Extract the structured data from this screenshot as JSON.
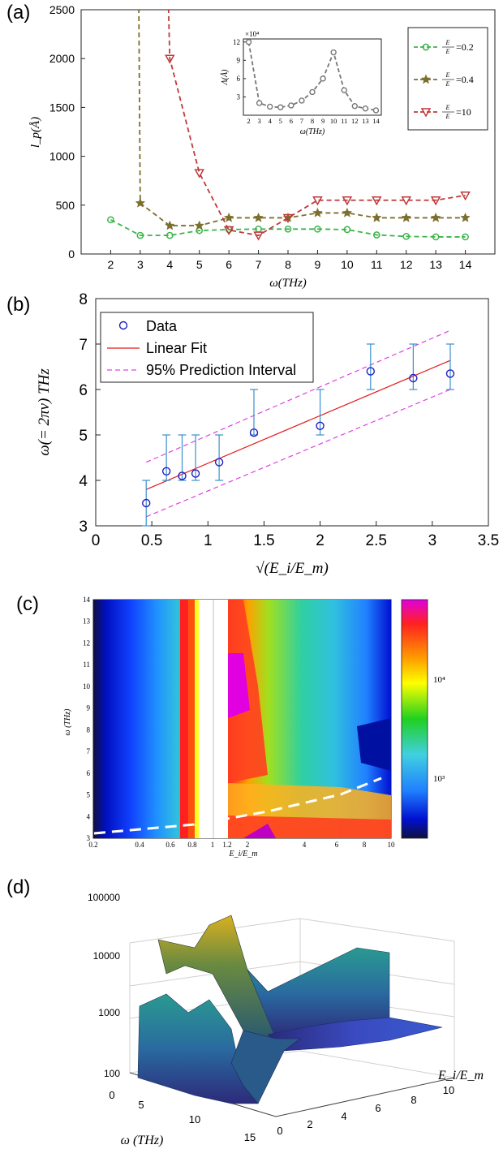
{
  "panels": {
    "a": "(a)",
    "b": "(b)",
    "c": "(c)",
    "d": "(d)"
  },
  "chart_data": [
    {
      "id": "a",
      "type": "line",
      "ylabel": "l_p(Å)",
      "xlabel": "ω(THz)",
      "xlim": [
        1,
        15
      ],
      "ylim": [
        0,
        2500
      ],
      "xticks": [
        2,
        3,
        4,
        5,
        6,
        7,
        8,
        9,
        10,
        11,
        12,
        13,
        14
      ],
      "yticks": [
        0,
        500,
        1000,
        1500,
        2000,
        2500
      ],
      "legend_position": "top-right",
      "series": [
        {
          "name": "E_i/E_m = 0.2",
          "marker": "circle",
          "color": "#3cb44b",
          "x": [
            2,
            3,
            4,
            5,
            6,
            7,
            8,
            9,
            10,
            11,
            12,
            13,
            14
          ],
          "y": [
            350,
            190,
            190,
            240,
            250,
            255,
            255,
            255,
            250,
            195,
            180,
            175,
            175
          ]
        },
        {
          "name": "E_i/E_m = 0.4",
          "marker": "star",
          "color": "#7b6f2e",
          "x": [
            3,
            4,
            5,
            6,
            7,
            8,
            9,
            10,
            11,
            12,
            13,
            14
          ],
          "y": [
            520,
            290,
            290,
            370,
            370,
            370,
            420,
            420,
            370,
            370,
            370,
            370
          ]
        },
        {
          "name": "E_i/E_m = 10",
          "marker": "triangle-down",
          "color": "#c0393b",
          "x": [
            4,
            5,
            6,
            7,
            8,
            9,
            10,
            11,
            12,
            13,
            14
          ],
          "y": [
            2000,
            830,
            245,
            190,
            370,
            550,
            550,
            550,
            550,
            550,
            600
          ]
        }
      ],
      "inset": {
        "ylabel": "Λ(Å)",
        "xlabel": "ω(THz)",
        "exponent": "×10⁴",
        "yticks": [
          3,
          6,
          9,
          12
        ],
        "xticks": [
          2,
          3,
          4,
          5,
          6,
          7,
          8,
          9,
          10,
          11,
          12,
          13,
          14
        ],
        "x": [
          2,
          3,
          4,
          5,
          6,
          7,
          8,
          9,
          10,
          11,
          12,
          13,
          14
        ],
        "y": [
          12,
          2.0,
          1.4,
          1.3,
          1.6,
          2.4,
          3.8,
          6.0,
          10.3,
          4.1,
          1.5,
          1.1,
          0.8
        ],
        "color": "#777777"
      }
    },
    {
      "id": "b",
      "type": "scatter",
      "ylabel": "ω(= 2πν) THz",
      "xlabel": "√(E_i/E_m)",
      "xlim": [
        0,
        3.5
      ],
      "ylim": [
        3,
        8
      ],
      "xticks": [
        0,
        0.5,
        1,
        1.5,
        2,
        2.5,
        3,
        3.5
      ],
      "yticks": [
        3,
        4,
        5,
        6,
        7,
        8
      ],
      "legend_position": "top-left",
      "legend": [
        "Data",
        "Linear Fit",
        "95% Prediction Interval"
      ],
      "data_points": {
        "x": [
          0.45,
          0.63,
          0.77,
          0.89,
          1.1,
          1.41,
          2.0,
          2.45,
          2.83,
          3.16
        ],
        "y": [
          3.5,
          4.2,
          4.1,
          4.15,
          4.4,
          5.05,
          5.2,
          6.4,
          6.25,
          6.35
        ],
        "err_low": [
          3.0,
          4.0,
          4.0,
          4.0,
          4.0,
          5.0,
          5.0,
          6.0,
          6.0,
          6.0
        ],
        "err_high": [
          4.0,
          5.0,
          5.0,
          5.0,
          5.0,
          6.0,
          6.0,
          7.0,
          7.0,
          7.0
        ]
      },
      "fit": {
        "x": [
          0.45,
          3.16
        ],
        "y": [
          3.8,
          6.64
        ]
      },
      "pred_upper": {
        "x": [
          0.45,
          3.16
        ],
        "y": [
          4.4,
          7.3
        ]
      },
      "pred_lower": {
        "x": [
          0.45,
          3.16
        ],
        "y": [
          3.2,
          6.0
        ]
      }
    },
    {
      "id": "c",
      "type": "heatmap",
      "ylabel": "ω (THz)",
      "xlabel": "E_i/E_m",
      "xscale": "log",
      "xticks": [
        "0.2",
        "0.4",
        "0.6",
        "0.8",
        "1",
        "1.2",
        "2",
        "4",
        "6",
        "8",
        "10"
      ],
      "yticks": [
        3,
        4,
        5,
        6,
        7,
        8,
        9,
        10,
        11,
        12,
        13,
        14
      ],
      "colorbar_ticks": [
        "10⁴",
        "10³"
      ],
      "colorscale": "log",
      "dashed_line": "white dashed fit line"
    },
    {
      "id": "d",
      "type": "surface",
      "zlabel": "",
      "xlabel": "ω (THz)",
      "ylabel": "E_i/E_m",
      "zscale": "log",
      "zticks": [
        "100",
        "1000",
        "10000",
        "100000"
      ],
      "xticks": [
        "0",
        "5",
        "10",
        "15"
      ],
      "yticks": [
        "0",
        "2",
        "4",
        "6",
        "8",
        "10"
      ]
    }
  ]
}
